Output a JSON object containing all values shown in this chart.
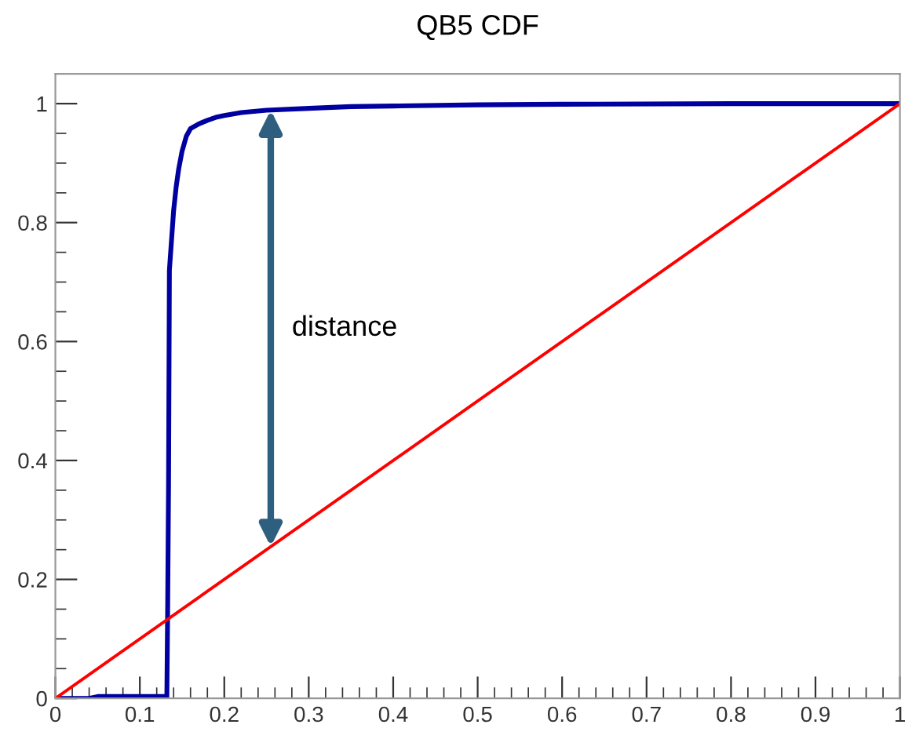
{
  "chart_data": {
    "type": "line",
    "title": "QB5 CDF",
    "xlim": [
      0,
      1
    ],
    "xticks": [
      0,
      0.1,
      0.2,
      0.3,
      0.4,
      0.5,
      0.6,
      0.7,
      0.8,
      0.9,
      1
    ],
    "ylim": [
      0,
      1.05
    ],
    "yticks": [
      0,
      0.2,
      0.4,
      0.6,
      0.8,
      1
    ],
    "grid": false,
    "legend": false,
    "marker": "none",
    "line_style": "solid",
    "series": [
      {
        "color": "#0000a0",
        "x": [
          0,
          0.04,
          0.05,
          0.1,
          0.132,
          0.133,
          0.134,
          0.135,
          0.136,
          0.138,
          0.14,
          0.143,
          0.146,
          0.15,
          0.155,
          0.16,
          0.165,
          0.17,
          0.18,
          0.19,
          0.2,
          0.22,
          0.25,
          0.3,
          0.35,
          0.4,
          0.5,
          0.6,
          0.8,
          1
        ],
        "values": [
          0,
          0,
          0.003,
          0.003,
          0.003,
          0.16,
          0.36,
          0.72,
          0.74,
          0.78,
          0.82,
          0.86,
          0.89,
          0.92,
          0.945,
          0.958,
          0.962,
          0.966,
          0.972,
          0.977,
          0.98,
          0.985,
          0.989,
          0.992,
          0.995,
          0.996,
          0.998,
          0.999,
          1,
          1
        ]
      },
      {
        "color": "#ff0000",
        "x": [
          0,
          1
        ],
        "values": [
          0,
          1
        ]
      }
    ],
    "annotations": [
      "distance"
    ]
  }
}
